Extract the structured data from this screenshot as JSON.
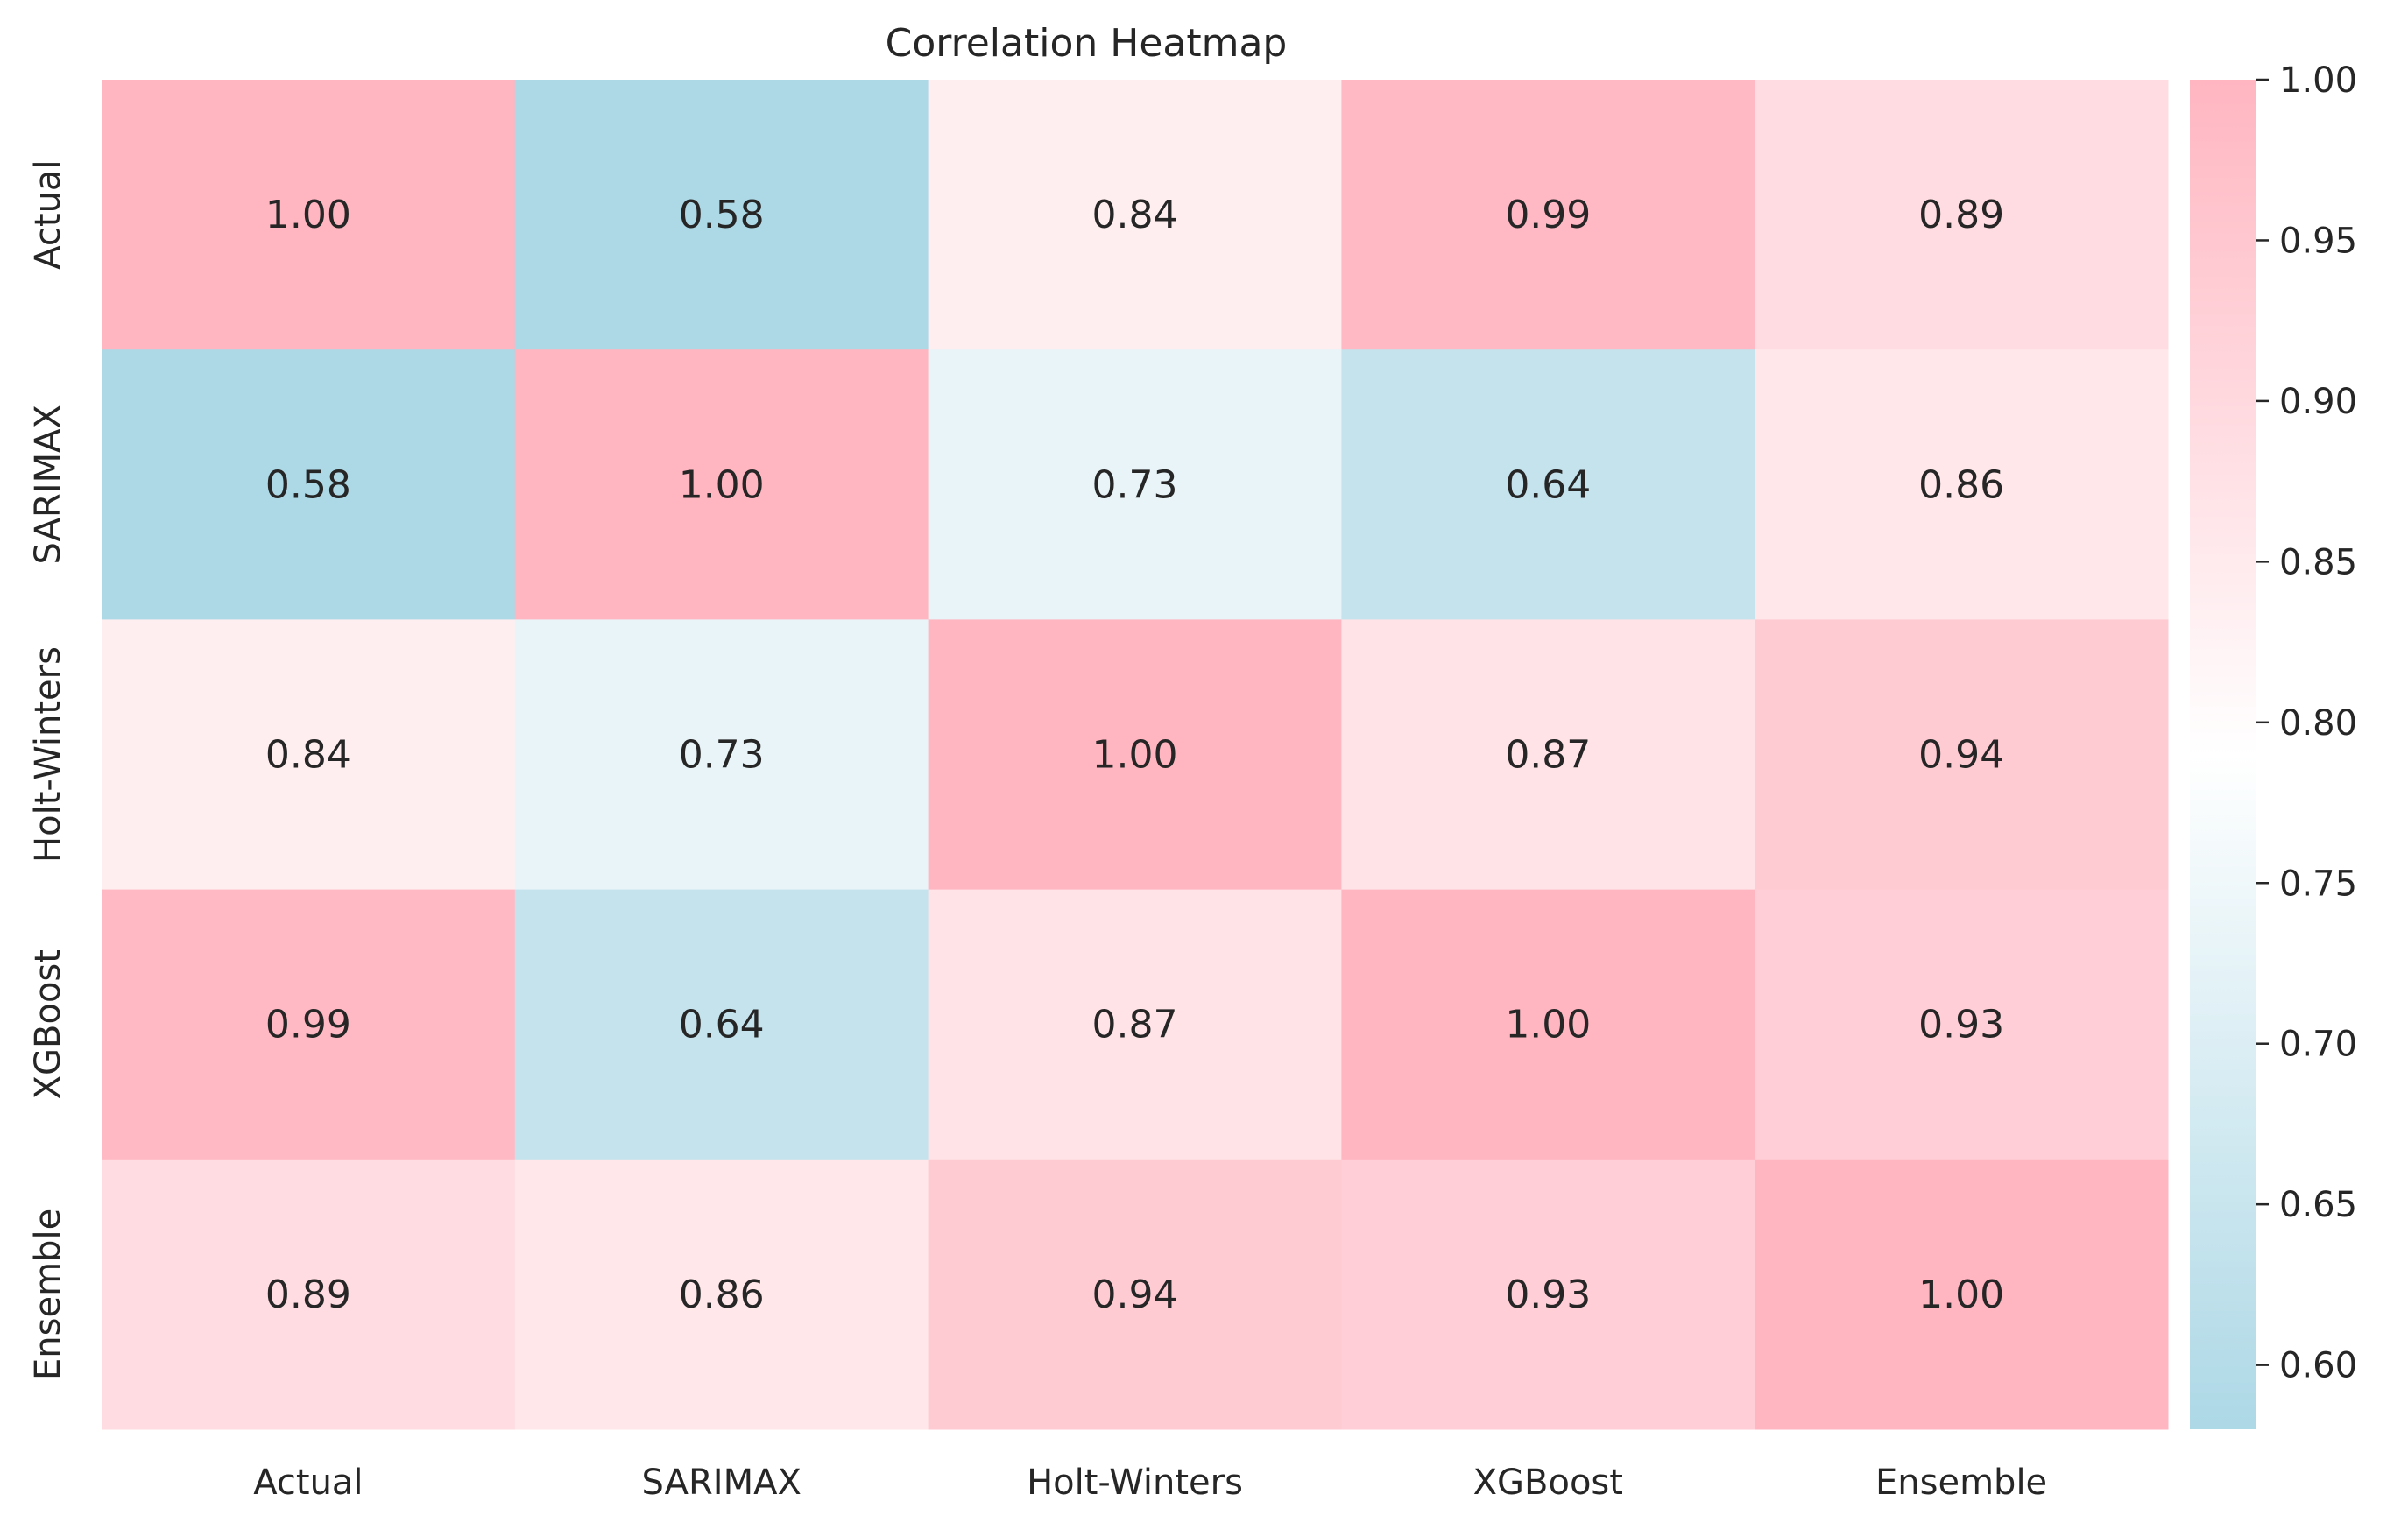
{
  "chart_data": {
    "type": "heatmap",
    "title": "Correlation Heatmap",
    "xlabel": "",
    "ylabel": "",
    "x_categories": [
      "Actual",
      "SARIMAX",
      "Holt-Winters",
      "XGBoost",
      "Ensemble"
    ],
    "y_categories": [
      "Actual",
      "SARIMAX",
      "Holt-Winters",
      "XGBoost",
      "Ensemble"
    ],
    "values": [
      [
        1.0,
        0.58,
        0.84,
        0.99,
        0.89
      ],
      [
        0.58,
        1.0,
        0.73,
        0.64,
        0.86
      ],
      [
        0.84,
        0.73,
        1.0,
        0.87,
        0.94
      ],
      [
        0.99,
        0.64,
        0.87,
        1.0,
        0.93
      ],
      [
        0.89,
        0.86,
        0.94,
        0.93,
        1.0
      ]
    ],
    "value_format": "0.00",
    "colorbar": {
      "range": [
        0.58,
        1.0
      ],
      "ticks": [
        "0.60",
        "0.65",
        "0.70",
        "0.75",
        "0.80",
        "0.85",
        "0.90",
        "0.95",
        "1.00"
      ],
      "colors": {
        "low": "#add8e6",
        "mid": "#ffffff",
        "high": "#ffb6c1"
      }
    },
    "grid": false,
    "colorbar_placement": "right"
  }
}
